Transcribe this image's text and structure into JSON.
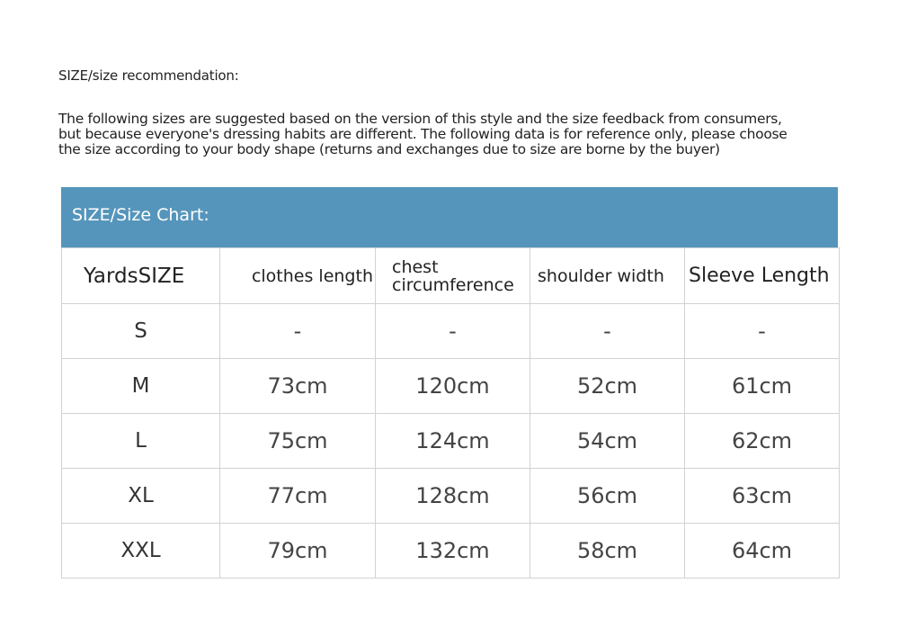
{
  "title": "SIZE/size recommendation:",
  "paragraph": [
    "The following sizes are suggested based on the version of this style and the size feedback from consumers,",
    "but because everyone's dressing habits are different. The following data is for reference only, please choose",
    "the size according to your body shape (returns and exchanges due to size are borne by the buyer)"
  ],
  "colors": {
    "header_bar": "#5595bb",
    "grid": "#d2d2d2"
  },
  "table": {
    "caption": "SIZE/Size Chart:",
    "headers": [
      "YardsSIZE",
      "clothes length",
      "chest circumference",
      "shoulder width",
      "Sleeve Length"
    ],
    "rows": [
      [
        "S",
        "-",
        "-",
        "-",
        "-"
      ],
      [
        "M",
        "73cm",
        "120cm",
        "52cm",
        "61cm"
      ],
      [
        "L",
        "75cm",
        "124cm",
        "54cm",
        "62cm"
      ],
      [
        "XL",
        "77cm",
        "128cm",
        "56cm",
        "63cm"
      ],
      [
        "XXL",
        "79cm",
        "132cm",
        "58cm",
        "64cm"
      ]
    ]
  }
}
